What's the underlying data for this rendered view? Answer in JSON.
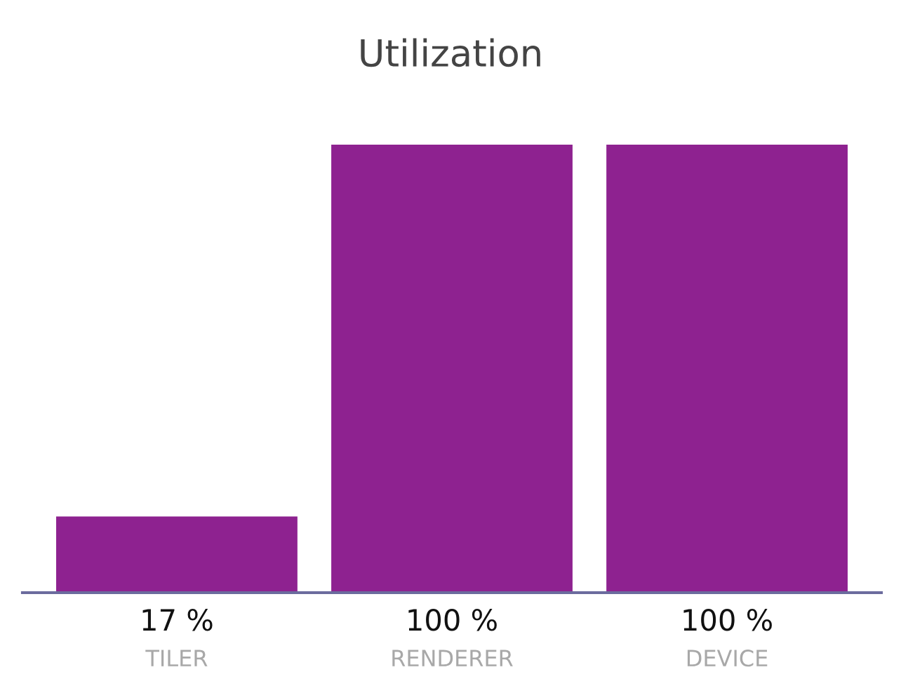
{
  "chart_data": {
    "type": "bar",
    "title": "Utilization",
    "categories": [
      "TILER",
      "RENDERER",
      "DEVICE"
    ],
    "values": [
      17,
      100,
      100
    ],
    "value_labels": [
      "17 %",
      "100 %",
      "100 %"
    ],
    "color": "#8e2290",
    "legend": false
  }
}
